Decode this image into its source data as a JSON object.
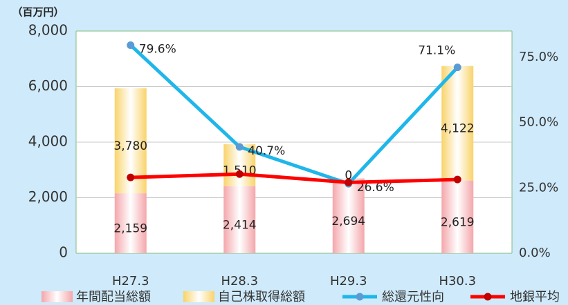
{
  "chart_data": {
    "type": "bar-line",
    "y_unit_label": "（百万円）",
    "categories": [
      "H27.3",
      "H28.3",
      "H29.3",
      "H30.3"
    ],
    "series": [
      {
        "name": "年間配当総額",
        "type": "bar",
        "color": "#f4a6ab",
        "values": [
          2159,
          2414,
          2694,
          2619
        ],
        "value_labels": [
          "2,159",
          "2,414",
          "2,694",
          "2,619"
        ]
      },
      {
        "name": "自己株取得総額",
        "type": "bar",
        "color": "#f9d36a",
        "values": [
          3780,
          1510,
          0,
          4122
        ],
        "value_labels": [
          "3,780",
          "1,510",
          "0",
          "4,122"
        ]
      },
      {
        "name": "総還元性向",
        "type": "line",
        "axis": "y2",
        "color": "#1fb6ea",
        "marker_color": "#5b9bd5",
        "values": [
          79.6,
          40.7,
          26.6,
          71.1
        ],
        "value_labels": [
          "79.6%",
          "40.7%",
          "26.6%",
          "71.1%"
        ]
      },
      {
        "name": "地銀平均",
        "type": "line",
        "axis": "y2",
        "color": "#ff0000",
        "marker_color": "#c00000",
        "values": [
          29.0,
          30.3,
          27.1,
          28.2
        ]
      }
    ],
    "ylim": [
      0,
      8000
    ],
    "yticks": [
      0,
      {
        "value": 2000,
        "label": "2,000"
      },
      {
        "value": 4000,
        "label": "4,000"
      },
      {
        "value": 6000,
        "label": "6,000"
      },
      {
        "value": 8000,
        "label": "8,000"
      }
    ],
    "y2lim": [
      0,
      85
    ],
    "y2ticks": [
      {
        "value": 0,
        "label": "0.0%"
      },
      {
        "value": 25,
        "label": "25.0%"
      },
      {
        "value": 50,
        "label": "50.0%"
      },
      {
        "value": 75,
        "label": "75.0%"
      }
    ],
    "grid": true
  }
}
